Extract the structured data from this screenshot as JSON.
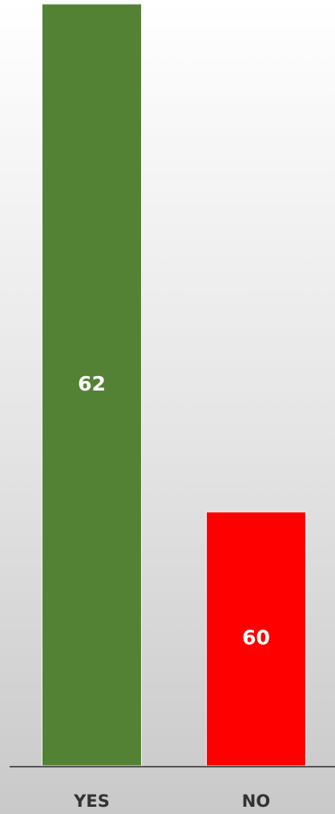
{
  "chart_data": {
    "type": "bar",
    "categories": [
      "YES",
      "NO"
    ],
    "values": [
      62,
      60
    ],
    "colors": [
      "#548235",
      "#ff0000"
    ],
    "ylim": [
      59,
      62
    ]
  }
}
